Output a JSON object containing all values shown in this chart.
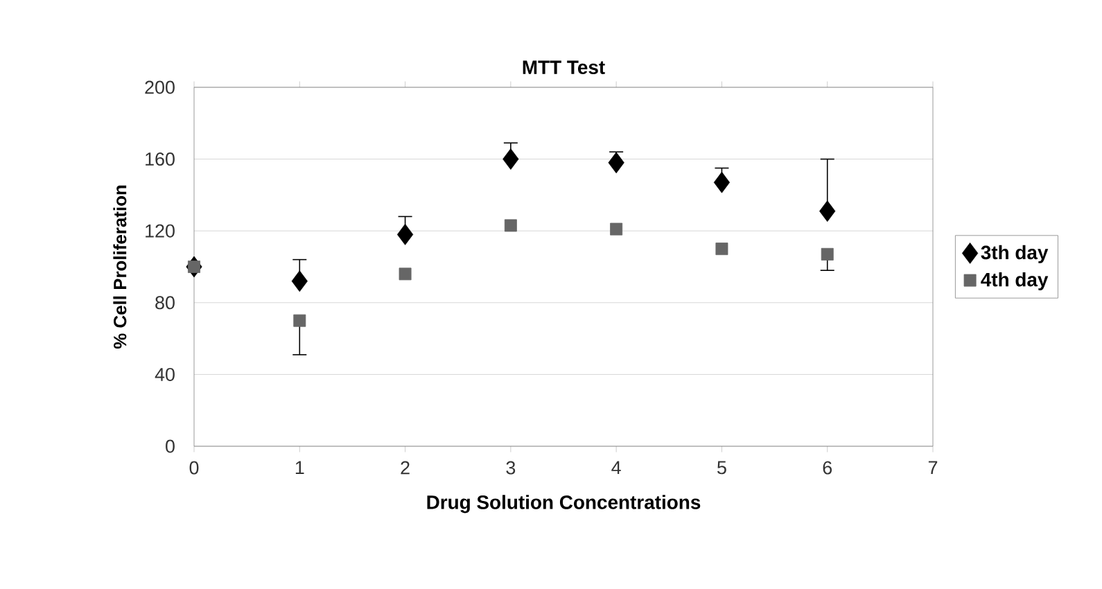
{
  "chart_data": {
    "type": "scatter",
    "title": "MTT Test",
    "xlabel": "Drug Solution Concentrations",
    "ylabel": "% Cell Proliferation",
    "x": [
      0,
      1,
      2,
      3,
      4,
      5,
      6
    ],
    "series": [
      {
        "name": "3th day",
        "color": "#000000",
        "marker": "diamond",
        "values": [
          100,
          92,
          118,
          160,
          158,
          147,
          131
        ],
        "errors": [
          null,
          [
            92,
            104
          ],
          [
            118,
            128
          ],
          [
            160,
            169
          ],
          [
            158,
            164
          ],
          [
            147,
            155
          ],
          [
            131,
            160
          ]
        ]
      },
      {
        "name": "4th day",
        "color": "#666666",
        "marker": "square",
        "values": [
          100,
          70,
          96,
          123,
          121,
          110,
          107
        ],
        "errors": [
          null,
          [
            51,
            70
          ],
          null,
          null,
          null,
          null,
          [
            98,
            107
          ]
        ]
      }
    ],
    "xlim": [
      0,
      7
    ],
    "xticks": [
      0,
      1,
      2,
      3,
      4,
      5,
      6,
      7
    ],
    "ylim": [
      0,
      200
    ],
    "yticks": [
      0,
      40,
      80,
      120,
      160,
      200
    ],
    "grid": "y",
    "legend": "right"
  }
}
